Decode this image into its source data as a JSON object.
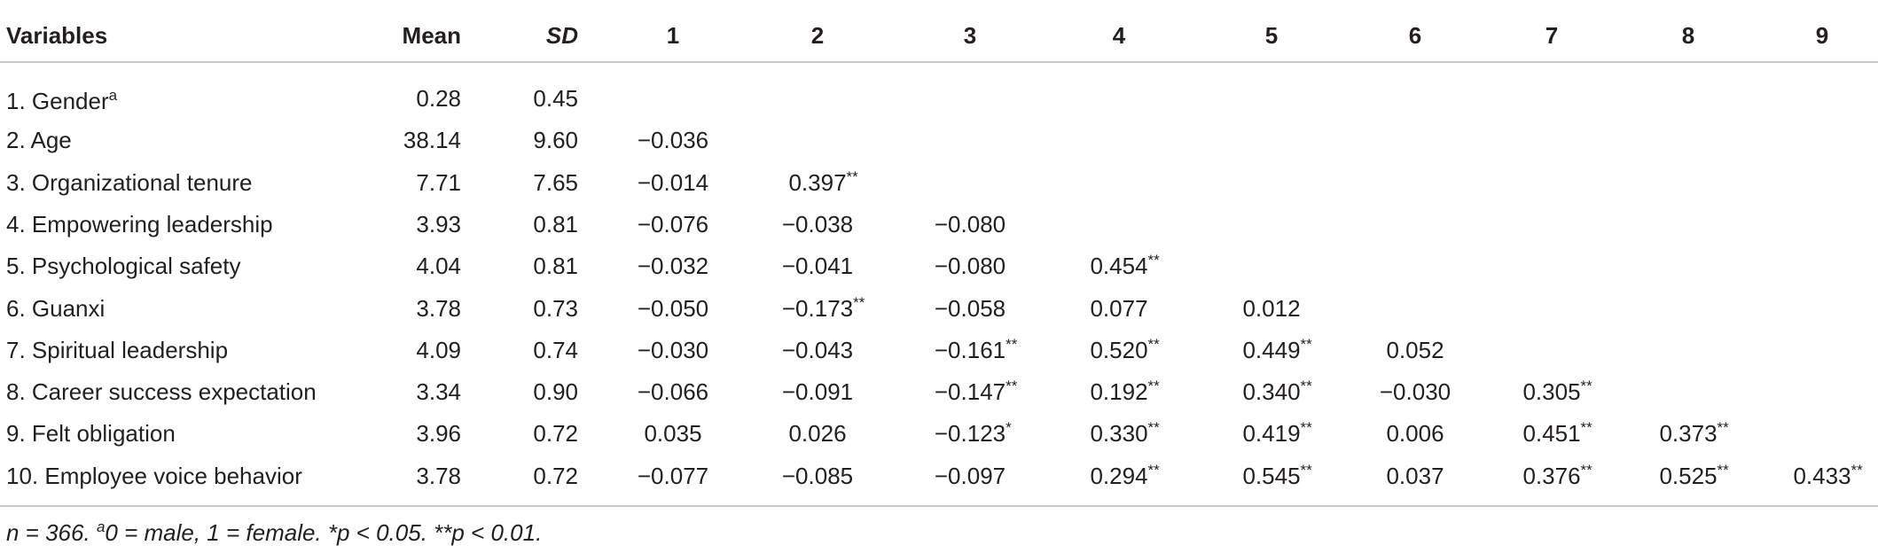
{
  "header": [
    "Variables",
    "Mean",
    "SD",
    "1",
    "2",
    "3",
    "4",
    "5",
    "6",
    "7",
    "8",
    "9"
  ],
  "rows": [
    {
      "label": "1. Gender",
      "label_sup": "a",
      "mean": "0.28",
      "sd": "0.45",
      "correlations": []
    },
    {
      "label": "2. Age",
      "mean": "38.14",
      "sd": "9.60",
      "correlations": [
        {
          "value": "−0.036"
        }
      ]
    },
    {
      "label": "3. Organizational tenure",
      "mean": "7.71",
      "sd": "7.65",
      "correlations": [
        {
          "value": "−0.014"
        },
        {
          "value": "0.397",
          "sig": "**"
        }
      ]
    },
    {
      "label": "4. Empowering leadership",
      "mean": "3.93",
      "sd": "0.81",
      "correlations": [
        {
          "value": "−0.076"
        },
        {
          "value": "−0.038"
        },
        {
          "value": "−0.080"
        }
      ]
    },
    {
      "label": "5. Psychological safety",
      "mean": "4.04",
      "sd": "0.81",
      "correlations": [
        {
          "value": "−0.032"
        },
        {
          "value": "−0.041"
        },
        {
          "value": "−0.080"
        },
        {
          "value": "0.454",
          "sig": "**"
        }
      ]
    },
    {
      "label": "6. Guanxi",
      "mean": "3.78",
      "sd": "0.73",
      "correlations": [
        {
          "value": "−0.050"
        },
        {
          "value": "−0.173",
          "sig": "**"
        },
        {
          "value": "−0.058"
        },
        {
          "value": "0.077"
        },
        {
          "value": "0.012"
        }
      ]
    },
    {
      "label": "7. Spiritual leadership",
      "mean": "4.09",
      "sd": "0.74",
      "correlations": [
        {
          "value": "−0.030"
        },
        {
          "value": "−0.043"
        },
        {
          "value": "−0.161",
          "sig": "**"
        },
        {
          "value": "0.520",
          "sig": "**"
        },
        {
          "value": "0.449",
          "sig": "**"
        },
        {
          "value": "0.052"
        }
      ]
    },
    {
      "label": "8. Career success expectation",
      "mean": "3.34",
      "sd": "0.90",
      "correlations": [
        {
          "value": "−0.066"
        },
        {
          "value": "−0.091"
        },
        {
          "value": "−0.147",
          "sig": "**"
        },
        {
          "value": "0.192",
          "sig": "**"
        },
        {
          "value": "0.340",
          "sig": "**"
        },
        {
          "value": "−0.030"
        },
        {
          "value": "0.305",
          "sig": "**"
        }
      ]
    },
    {
      "label": "9. Felt obligation",
      "mean": "3.96",
      "sd": "0.72",
      "correlations": [
        {
          "value": "0.035"
        },
        {
          "value": "0.026"
        },
        {
          "value": "−0.123",
          "sig": "*"
        },
        {
          "value": "0.330",
          "sig": "**"
        },
        {
          "value": "0.419",
          "sig": "**"
        },
        {
          "value": "0.006"
        },
        {
          "value": "0.451",
          "sig": "**"
        },
        {
          "value": "0.373",
          "sig": "**"
        }
      ]
    },
    {
      "label": "10. Employee voice behavior",
      "mean": "3.78",
      "sd": "0.72",
      "correlations": [
        {
          "value": "−0.077"
        },
        {
          "value": "−0.085"
        },
        {
          "value": "−0.097"
        },
        {
          "value": "0.294",
          "sig": "**"
        },
        {
          "value": "0.545",
          "sig": "**"
        },
        {
          "value": "0.037"
        },
        {
          "value": "0.376",
          "sig": "**"
        },
        {
          "value": "0.525",
          "sig": "**"
        },
        {
          "value": "0.433",
          "sig": "**"
        }
      ]
    }
  ],
  "footnote": [
    "n = 366.",
    "a",
    "0 = male, 1 = female. *p < 0.05. **p < 0.01."
  ]
}
